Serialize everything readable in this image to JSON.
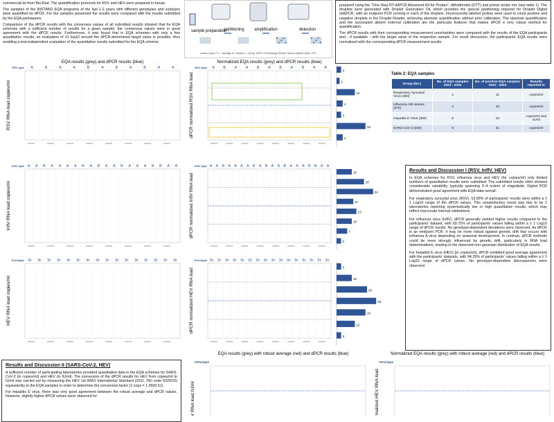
{
  "intro": {
    "paragraphs": [
      "commercial kit from Bio-Rad. The quantification protocols for RSV and HEV were prepared in-house.",
      "The samples of the INSTAND EQA programs of the last 1-2 years with different genotypes and subtypes were quantified by dPCR. For the samples presented the results were compared with the results submitted by the EQA participants.",
      "Comparison of the dPCR results with the consensus values of all submitted results showed that for EQA schemes with a sufficient number of results for a given sample, the consensus values were in good agreement with the dPCR results. Furthermore, it was found that in EQA schemes with only a few quantitative results, an evaluation of ±1 log10 around the dPCR-determined target value is possible, thus enabling a test-independent evaluation of the quantitative results submitted for the EQA scheme."
    ]
  },
  "workflow": {
    "steps": [
      "sample preparation",
      "partitioning",
      "amplification",
      "detection"
    ],
    "source": "source: Quan, P.-L., Sauvage, M., Moreau, L. (2018). dPCR: A Technology Review. Sensors (Basel) 18(4): 1271"
  },
  "methods": {
    "paragraphs": [
      "prepared using the \"One-Step RT-ddPCR Advanced Kit for Probes\", dithiothreitol (DTT) and primer probe mix (see table 1). The droplets were generated with Droplet Generation Oil, which provides the special partitioning required for Droplet Digital (dd)PCR, with an endpoint PCR running in each of the droplets. Fluorescently labeled probes were used to count positive and negative droplets in the Droplet Reader, achieving absolute quantification without prior calibration. The absolute quantification and the associated absent external calibration are the particular features that makes dPCR a very robust method for quantification.",
      "The dPCR results with their corresponding measurement uncertainties were compared with the results of the EQA participants and - if available - with the target value of the respective sample. For result discussion, the participants' EQA results were normalized with the corresponding dPCR measurement results."
    ]
  },
  "chart_rows": [
    {
      "eqa_title": "EQA results (grey) and dPCR results (blue)",
      "norm_title": "Normalized EQA results (grey) and dPCR results (blue)",
      "eqa_y_label": "RSV RNA load copies/ml",
      "norm_y_label": "dPCR normalized RSV RNA load",
      "type_label": "RSV type",
      "types": [
        "A",
        "B",
        "A",
        "A",
        "B",
        "A",
        "B",
        "A",
        "B",
        "A",
        "A"
      ],
      "bar_values": [
        3,
        2,
        12,
        4,
        3,
        19,
        4
      ]
    },
    {
      "eqa_y_label": "InflV RNA load copies/ml",
      "norm_y_label": "dPCR normalized InflV RNA load",
      "type_label": "InflV type",
      "types": [
        "A",
        "A",
        "B",
        "A",
        "A",
        "A",
        "A",
        "B",
        "A",
        "B",
        "A",
        "A",
        "B",
        "A",
        "A",
        "A",
        "B",
        "B",
        "A",
        "A"
      ],
      "bar_values": [
        10,
        18,
        24,
        11,
        13,
        10,
        7,
        3
      ]
    },
    {
      "eqa_y_label": "HEV RNA load copies/ml",
      "norm_y_label": "dPCR normalized HEV RNA load",
      "type_label": "Genotype",
      "types": [
        "3c",
        "3c",
        "3c",
        "3c",
        "3c",
        "3c",
        "3c",
        "3c",
        "3c",
        "3c",
        "3c",
        "3c",
        "3c",
        "3c",
        "3c",
        "3c"
      ],
      "bar_values": [
        3,
        10,
        20,
        26,
        19,
        12,
        3
      ]
    }
  ],
  "table": {
    "title": "Table 2: EQA samples",
    "headers": [
      "Group (No.)",
      "No. of EQA samples 2023 - 2024",
      "No. of positive EQA samples 2022 - 2024",
      "Results reported in"
    ],
    "rows": [
      [
        "Respiratory Syncytial Virus (350)",
        "4",
        "11",
        "copies/ml"
      ],
      [
        "Influenza A/B viruses (370)",
        "4",
        "20",
        "copies/ml"
      ],
      [
        "Hepatitis E Virus (380)",
        "8",
        "22",
        "copies/ml and IU/ml"
      ],
      [
        "SARS-CoV-2 (400)",
        "8",
        "31",
        "copies/ml"
      ]
    ]
  },
  "results1": {
    "title": "Results and Discussion I (RSV, InflV, HEV)",
    "paragraphs": [
      "In EQA schemes for RSV, influenza virus and HEV (for copies/ml) only limited numbers of quantitative results were submitted. The submitted results often showed considerable variability, typically spanning 3–4 orders of magnitude. Digital PCR demonstrated good agreement with EQA data overall.",
      "For respiratory syncytial virus (RSV), 53.85% of participants' results were within a ± 1 Log10 range of the dPCR values. This unsatisfactory result was due to by 2 laboratories reporting systematically low or high quantitative results, which may reflect inaccurate internal calibrations.",
      "For influenza virus (InflV), dPCR generally yielded higher results compared to the participants' dataset, with 69.75% of participants' values falling within a ± 1 Log10 range of dPCR results. No genotype-dependent deviations were observed. As dPCR is an endpoint PCR, it may be more robust against genetic drift that occurs with influenza A virus depending on seasonal development. In contrast, qPCR methods could be more strongly influenced by genetic drift, particularly in RNA load determinations, leading to the observed non-gaussian distribution of EQA results.",
      "For hepatitis E virus (HEV) (in copies/ml), dPCR exhibited good average agreement with the participants' datasets, with 94.29% of participants' values falling within a ± 1 Log10 range of dPCR values. No genotype-dependent discrepancies were observed."
    ]
  },
  "results2": {
    "title": "Results and Discussion II (SARS-CoV-2, HEV)",
    "paragraphs": [
      "A sufficient number of participating laboratories provided quantitative data in the EQA schemes for SARS-CoV-2 (in copies/ml) and HEV (in IU/ml). The conversion of the dPCR results for HEV from copies/ml to IU/ml was carried out by measuring the HEV 1st WHO International Standard (2011, PEI code 6329/10) equivalently to the EQA samples in order to determine the conversion factor (1 copy = 1.3609 IU).",
      "For hepatitis E virus, there was very good agreement between the robust average and dPCR values. However, slightly higher dPCR values were observed for"
    ]
  },
  "bottom_charts": [
    {
      "title": "EQA results (grey) with robust average (red) and dPCR results (blue)",
      "y_label": "HEV RNA load IU/ml",
      "type_label": "Genotype"
    },
    {
      "title": "Normalized EQA results (grey) with robust average (red) and dPCR results (blue)",
      "y_label": "dPCR normalized HEV RNA load",
      "type_label": "Genotype"
    }
  ]
}
